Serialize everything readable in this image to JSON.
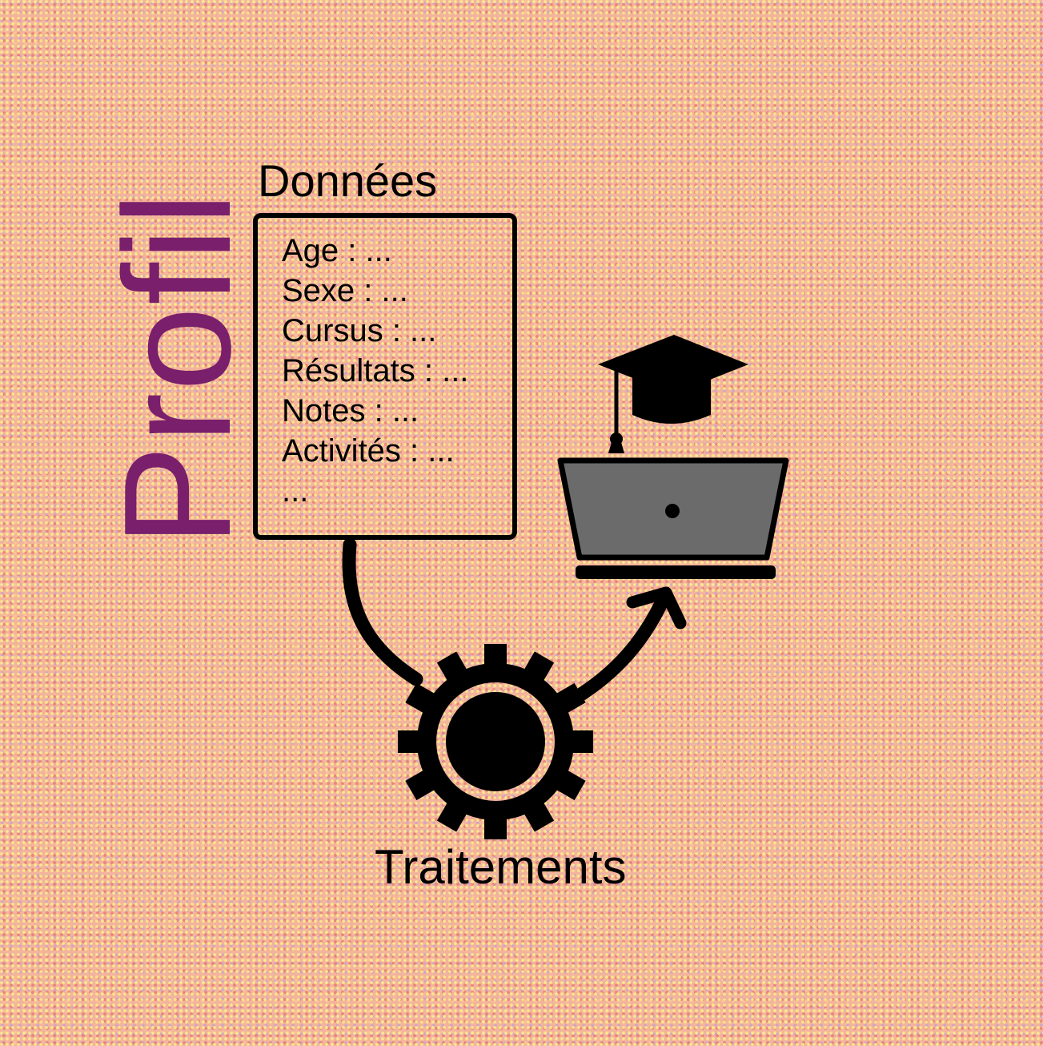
{
  "profile_label": "Profil",
  "data_box": {
    "title": "Données",
    "fields": [
      "Age : ...",
      "Sexe : ...",
      "Cursus : ...",
      "Résultats : ...",
      "Notes : ...",
      "Activités : ...",
      "..."
    ]
  },
  "process": {
    "label": "Traitements",
    "icon": "gear-icon"
  },
  "output": {
    "icons": [
      "laptop-icon",
      "graduation-cap-icon"
    ]
  },
  "colors": {
    "ink": "#000000",
    "profile_text": "#7a1f6b",
    "laptop_screen": "#6b6b6b"
  }
}
